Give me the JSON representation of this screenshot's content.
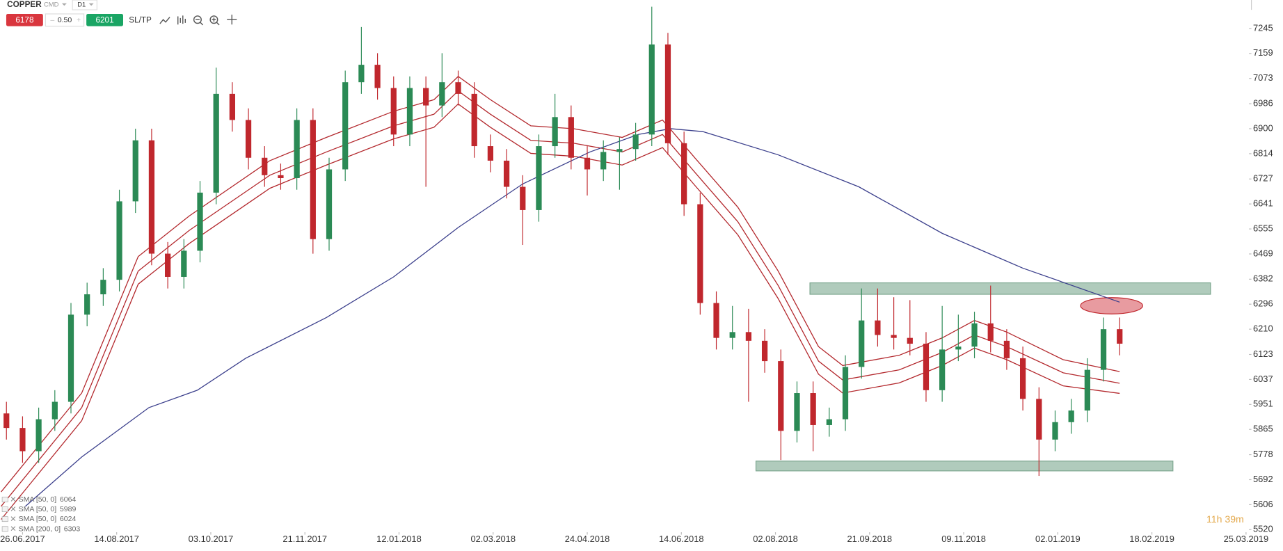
{
  "toolbar": {
    "symbol": "COPPER",
    "market": "CMD",
    "timeframe": "D1",
    "bid": 6178,
    "spread": "0.50",
    "ask": 6201,
    "sltp": "SL/TP"
  },
  "timer": "11h 39m",
  "chart_data": {
    "type": "candlestick",
    "xlim": [
      -8.2,
      457
    ],
    "ylim": [
      5514,
      7343
    ],
    "xticks": [
      {
        "value": 0,
        "label": "26.06.2017"
      },
      {
        "value": 35,
        "label": "14.08.2017"
      },
      {
        "value": 70,
        "label": "03.10.2017"
      },
      {
        "value": 105,
        "label": "21.11.2017"
      },
      {
        "value": 140,
        "label": "12.01.2018"
      },
      {
        "value": 175,
        "label": "02.03.2018"
      },
      {
        "value": 210,
        "label": "24.04.2018"
      },
      {
        "value": 245,
        "label": "14.06.2018"
      },
      {
        "value": 280,
        "label": "02.08.2018"
      },
      {
        "value": 315,
        "label": "21.09.2018"
      },
      {
        "value": 350,
        "label": "09.11.2018"
      },
      {
        "value": 385,
        "label": "02.01.2019"
      },
      {
        "value": 420,
        "label": "18.02.2019"
      },
      {
        "value": 455,
        "label": "25.03.2019"
      }
    ],
    "yticks": [
      7245,
      7159,
      7073,
      6986,
      6900,
      6814,
      6727,
      6641,
      6555,
      6469,
      6382,
      6296,
      6210,
      6123,
      6037,
      5951,
      5865,
      5778,
      5692,
      5606,
      5520
    ],
    "up_color": "#2b8a55",
    "down_color": "#c0272d",
    "candles": {
      "x": [
        -6,
        0,
        6,
        12,
        18,
        24,
        30,
        36,
        42,
        48,
        54,
        60,
        66,
        72,
        78,
        84,
        90,
        96,
        102,
        108,
        114,
        120,
        126,
        132,
        138,
        144,
        150,
        156,
        162,
        168,
        174,
        180,
        186,
        192,
        198,
        204,
        210,
        216,
        222,
        228,
        234,
        240,
        246,
        252,
        258,
        264,
        270,
        276,
        282,
        288,
        294,
        300,
        306,
        312,
        318,
        324,
        330,
        336,
        342,
        348,
        354,
        360,
        366,
        372,
        378,
        384,
        390,
        396,
        402,
        408
      ],
      "open": [
        5920,
        5870,
        5790,
        5900,
        5960,
        6260,
        6330,
        6380,
        6650,
        6860,
        6470,
        6390,
        6480,
        6680,
        7020,
        6930,
        6800,
        6740,
        6730,
        6930,
        6520,
        6760,
        7060,
        7120,
        7040,
        6880,
        7040,
        6980,
        7060,
        7020,
        6840,
        6790,
        6700,
        6620,
        6840,
        6940,
        6800,
        6760,
        6820,
        6830,
        6880,
        7190,
        6850,
        6640,
        6300,
        6180,
        6200,
        6170,
        6100,
        5860,
        5990,
        5880,
        5900,
        6080,
        6240,
        6190,
        6180,
        6160,
        6000,
        6140,
        6150,
        6230,
        6170,
        6110,
        5970,
        5830,
        5890,
        5930,
        6070,
        6210
      ],
      "high": [
        5960,
        5910,
        5940,
        6000,
        6300,
        6370,
        6420,
        6690,
        6900,
        6900,
        6510,
        6520,
        6720,
        7110,
        7060,
        6970,
        6840,
        6780,
        6970,
        6970,
        6800,
        7100,
        7250,
        7160,
        7080,
        7080,
        7080,
        7160,
        7100,
        7060,
        6880,
        6830,
        6740,
        6880,
        7020,
        6980,
        6840,
        6860,
        6870,
        6920,
        7320,
        7230,
        6890,
        6680,
        6340,
        6290,
        6280,
        6210,
        6140,
        6030,
        6030,
        5940,
        6120,
        6350,
        6350,
        6320,
        6310,
        6200,
        6290,
        6260,
        6270,
        6360,
        6210,
        6150,
        6010,
        5930,
        5970,
        6110,
        6250,
        6250
      ],
      "low": [
        5830,
        5750,
        5750,
        5860,
        5920,
        6220,
        6290,
        6340,
        6610,
        6430,
        6350,
        6350,
        6440,
        6640,
        6890,
        6760,
        6700,
        6690,
        6690,
        6470,
        6480,
        6720,
        7020,
        7000,
        6840,
        6840,
        6700,
        6940,
        6980,
        6800,
        6750,
        6660,
        6500,
        6580,
        6800,
        6760,
        6670,
        6720,
        6690,
        6790,
        6840,
        6810,
        6600,
        6260,
        6140,
        6140,
        5960,
        6060,
        5760,
        5820,
        5790,
        5840,
        5860,
        6040,
        6150,
        6140,
        6120,
        5960,
        5960,
        6100,
        6110,
        6130,
        6070,
        5930,
        5705,
        5790,
        5850,
        5890,
        6030,
        6120
      ],
      "close": [
        5870,
        5790,
        5900,
        5960,
        6260,
        6330,
        6380,
        6650,
        6860,
        6470,
        6390,
        6480,
        6680,
        7020,
        6930,
        6800,
        6740,
        6730,
        6930,
        6520,
        6760,
        7060,
        7120,
        7040,
        6880,
        7040,
        6980,
        7060,
        7020,
        6840,
        6790,
        6700,
        6620,
        6840,
        6940,
        6800,
        6760,
        6820,
        6830,
        6880,
        7190,
        6850,
        6640,
        6300,
        6180,
        6200,
        6170,
        6100,
        5860,
        5990,
        5880,
        5900,
        6080,
        6240,
        6190,
        6180,
        6160,
        6000,
        6140,
        6150,
        6230,
        6170,
        6110,
        5970,
        5830,
        5890,
        5930,
        6070,
        6210,
        6160
      ]
    },
    "series": [
      {
        "name": "SMA [50, 0]",
        "color": "#b3282d",
        "x": [
          -8,
          22,
          43,
          62,
          92,
          113,
          138,
          153,
          162,
          174,
          189,
          205,
          223,
          238,
          250,
          266,
          281,
          296,
          305,
          326,
          342,
          354,
          366,
          387,
          408
        ],
        "values": [
          5650,
          5990,
          6460,
          6600,
          6790,
          6870,
          6960,
          7000,
          7080,
          7000,
          6910,
          6900,
          6870,
          6930,
          6800,
          6630,
          6410,
          6150,
          6085,
          6120,
          6180,
          6240,
          6200,
          6105,
          6064
        ]
      },
      {
        "name": "SMA [50, 0]",
        "color": "#b3282d",
        "x": [
          -8,
          22,
          43,
          62,
          92,
          113,
          138,
          153,
          162,
          174,
          189,
          205,
          223,
          238,
          250,
          266,
          281,
          296,
          305,
          326,
          342,
          354,
          366,
          387,
          408
        ],
        "values": [
          5555,
          5895,
          6365,
          6505,
          6695,
          6775,
          6865,
          6905,
          6985,
          6905,
          6815,
          6805,
          6775,
          6835,
          6705,
          6535,
          6315,
          6055,
          5990,
          6025,
          6085,
          6145,
          6105,
          6015,
          5989
        ]
      },
      {
        "name": "SMA [50, 0]",
        "color": "#b3282d",
        "x": [
          -8,
          22,
          43,
          62,
          92,
          113,
          138,
          153,
          162,
          174,
          189,
          205,
          223,
          238,
          250,
          266,
          281,
          296,
          305,
          326,
          342,
          354,
          366,
          387,
          408
        ],
        "values": [
          5600,
          5940,
          6410,
          6550,
          6740,
          6820,
          6910,
          6950,
          7030,
          6950,
          6860,
          6850,
          6820,
          6880,
          6750,
          6580,
          6360,
          6100,
          6035,
          6070,
          6130,
          6190,
          6150,
          6060,
          6024
        ]
      },
      {
        "name": "SMA [200, 0]",
        "color": "#3b3f8c",
        "x": [
          1,
          22,
          47,
          65,
          83,
          113,
          138,
          162,
          186,
          211,
          229,
          241,
          253,
          281,
          311,
          342,
          372,
          408
        ],
        "values": [
          5600,
          5770,
          5940,
          6000,
          6110,
          6250,
          6390,
          6560,
          6710,
          6820,
          6880,
          6900,
          6890,
          6810,
          6700,
          6540,
          6420,
          6303
        ]
      }
    ]
  }
}
